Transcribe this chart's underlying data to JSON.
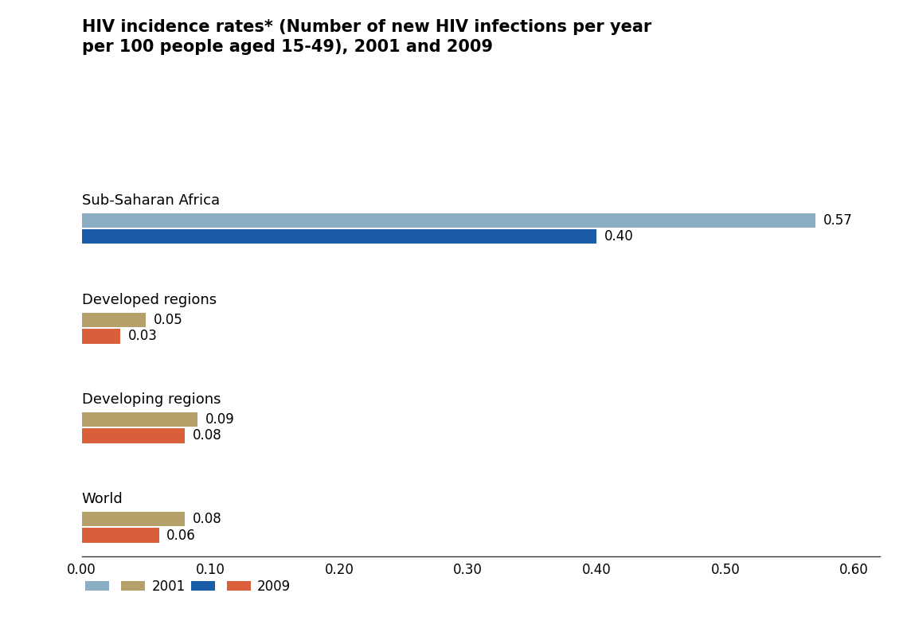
{
  "title_line1": "HIV incidence rates* (Number of new HIV infections per year",
  "title_line2": "per 100 people aged 15-49), 2001 and 2009",
  "title_fontsize": 15,
  "title_fontweight": "bold",
  "categories": [
    "Sub-Saharan Africa",
    "Developed regions",
    "Developing regions",
    "World"
  ],
  "values_2001": [
    0.57,
    0.05,
    0.09,
    0.08
  ],
  "values_2009": [
    0.4,
    0.03,
    0.08,
    0.06
  ],
  "color_2001_ssa": "#8BAEC4",
  "color_2009_ssa": "#1A5CA8",
  "color_2001_other": "#B5A06A",
  "color_2009_other": "#D95F3B",
  "xlim": [
    0,
    0.62
  ],
  "xticks": [
    0.0,
    0.1,
    0.2,
    0.3,
    0.4,
    0.5,
    0.6
  ],
  "xtick_labels": [
    "0.00",
    "0.10",
    "0.20",
    "0.30",
    "0.40",
    "0.50",
    "0.60"
  ],
  "bar_height": 0.32,
  "category_fontsize": 13,
  "tick_fontsize": 12,
  "legend_fontsize": 12,
  "value_label_fontsize": 12,
  "background_color": "#FFFFFF"
}
